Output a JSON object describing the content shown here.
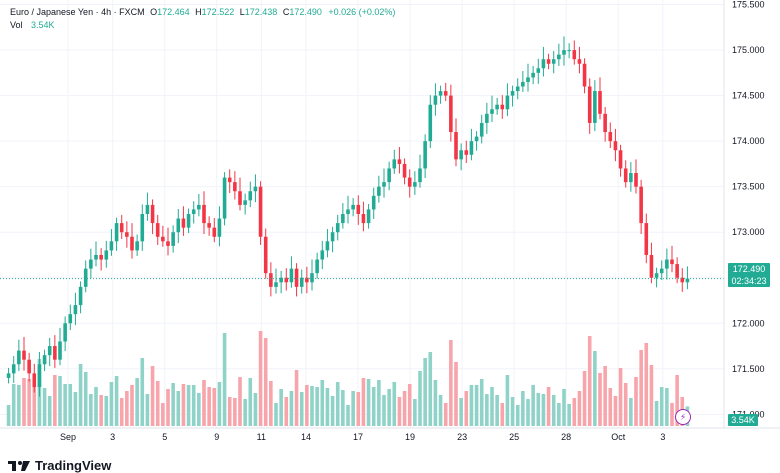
{
  "legend": {
    "symbol": "Euro / Japanese Yen · 4h · FXCM",
    "o_label": "O",
    "o_value": "172.464",
    "h_label": "H",
    "h_value": "172.522",
    "l_label": "L",
    "l_value": "172.438",
    "c_label": "C",
    "c_value": "172.490",
    "change": "+0.026 (+0.02%)",
    "vol_label": "Vol",
    "vol_value": "3.54K"
  },
  "price_tag": {
    "price": "172.490",
    "countdown": "02:34:23"
  },
  "volume_tag": "3.54K",
  "branding": {
    "logo_text": "TradingView"
  },
  "colors": {
    "up": "#22ab94",
    "down": "#f23645",
    "vol_up": "#8fd3c8",
    "vol_down": "#f7a5ab",
    "grid": "#f0f3fa"
  },
  "chart_data": {
    "type": "candlestick",
    "title": "Euro / Japanese Yen · 4h · FXCM",
    "y_axis": {
      "ticks": [
        "175.500",
        "175.000",
        "174.500",
        "174.000",
        "173.500",
        "173.000",
        "172.500",
        "172.000",
        "171.500",
        "171.000"
      ],
      "ylim": [
        170.85,
        175.55
      ]
    },
    "x_axis": {
      "ticks": [
        "Sep",
        "3",
        "5",
        "9",
        "11",
        "14",
        "17",
        "19",
        "23",
        "25",
        "28",
        "Oct",
        "3"
      ]
    },
    "last_price": 172.49,
    "close_series": [
      171.45,
      171.55,
      171.7,
      171.6,
      171.45,
      171.3,
      171.55,
      171.65,
      171.75,
      171.6,
      171.8,
      172.0,
      172.1,
      172.2,
      172.4,
      172.6,
      172.7,
      172.75,
      172.7,
      172.8,
      172.9,
      173.1,
      173.0,
      172.95,
      172.8,
      172.9,
      173.2,
      173.3,
      173.1,
      172.95,
      172.9,
      172.85,
      173.0,
      173.15,
      173.05,
      173.2,
      173.25,
      173.3,
      173.1,
      173.05,
      172.95,
      173.15,
      173.6,
      173.55,
      173.45,
      173.3,
      173.35,
      173.45,
      173.5,
      172.95,
      172.55,
      172.4,
      172.45,
      172.5,
      172.45,
      172.6,
      172.4,
      172.5,
      172.45,
      172.55,
      172.7,
      172.8,
      172.9,
      173.0,
      173.1,
      173.2,
      173.25,
      173.3,
      173.2,
      173.1,
      173.25,
      173.4,
      173.5,
      173.55,
      173.7,
      173.8,
      173.75,
      173.6,
      173.5,
      173.55,
      173.7,
      174.0,
      174.4,
      174.5,
      174.55,
      174.5,
      174.1,
      173.8,
      173.9,
      173.85,
      174.0,
      174.05,
      174.2,
      174.3,
      174.35,
      174.4,
      174.35,
      174.5,
      174.55,
      174.6,
      174.65,
      174.7,
      174.75,
      174.8,
      174.9,
      174.85,
      174.9,
      174.95,
      175.0,
      175.0,
      174.9,
      174.85,
      174.6,
      174.2,
      174.55,
      174.3,
      174.1,
      174.0,
      173.9,
      173.7,
      173.55,
      173.65,
      173.5,
      173.1,
      172.75,
      172.5,
      172.55,
      172.6,
      172.7,
      172.65,
      172.5,
      172.45,
      172.49
    ]
  }
}
